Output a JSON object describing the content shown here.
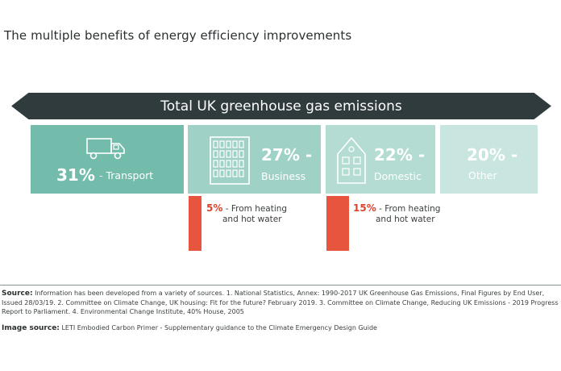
{
  "title": "The multiple benefits of energy efficiency improvements",
  "banner": "Total UK greenhouse gas emissions",
  "segments": [
    {
      "pct": "31%",
      "label": "- Transport",
      "icon": "truck-icon"
    },
    {
      "pct": "27% -",
      "label": "Business",
      "icon": "office-building-icon"
    },
    {
      "pct": "22% -",
      "label": "Domestic",
      "icon": "house-icon"
    },
    {
      "pct": "20% -",
      "label": "Other"
    }
  ],
  "heating": [
    {
      "pct": "5%",
      "text_line1": "- From heating",
      "text_line2": "and hot water",
      "share_of_total_percent": 5
    },
    {
      "pct": "15%",
      "text_line1": "- From heating",
      "text_line2": "and hot water",
      "share_of_total_percent": 15
    }
  ],
  "source": {
    "label": "Source:",
    "text": "Information has been developed from a variety of sources. 1. National Statistics, Annex: 1990-2017 UK Greenhouse Gas Emissions, Final Figures by End User, Issued 28/03/19. 2. Committee on Climate Change, UK housing: Fit for the future? February 2019. 3. Committee on Climate Change, Reducing UK Emissions - 2019 Progress Report to Parliament. 4. Environmental Change Institute, 40% House, 2005"
  },
  "image_source": {
    "label": "Image source:",
    "text": "LETI Embodied Carbon Primer -  Supplementary guidance to the Climate Emergency Design Guide"
  },
  "colors": {
    "banner": "#2f3b3d",
    "transport": "#73bcac",
    "business": "#9fd1c6",
    "domestic": "#b4dcd3",
    "other": "#c8e6df",
    "heating_bar": "#e8553f"
  }
}
